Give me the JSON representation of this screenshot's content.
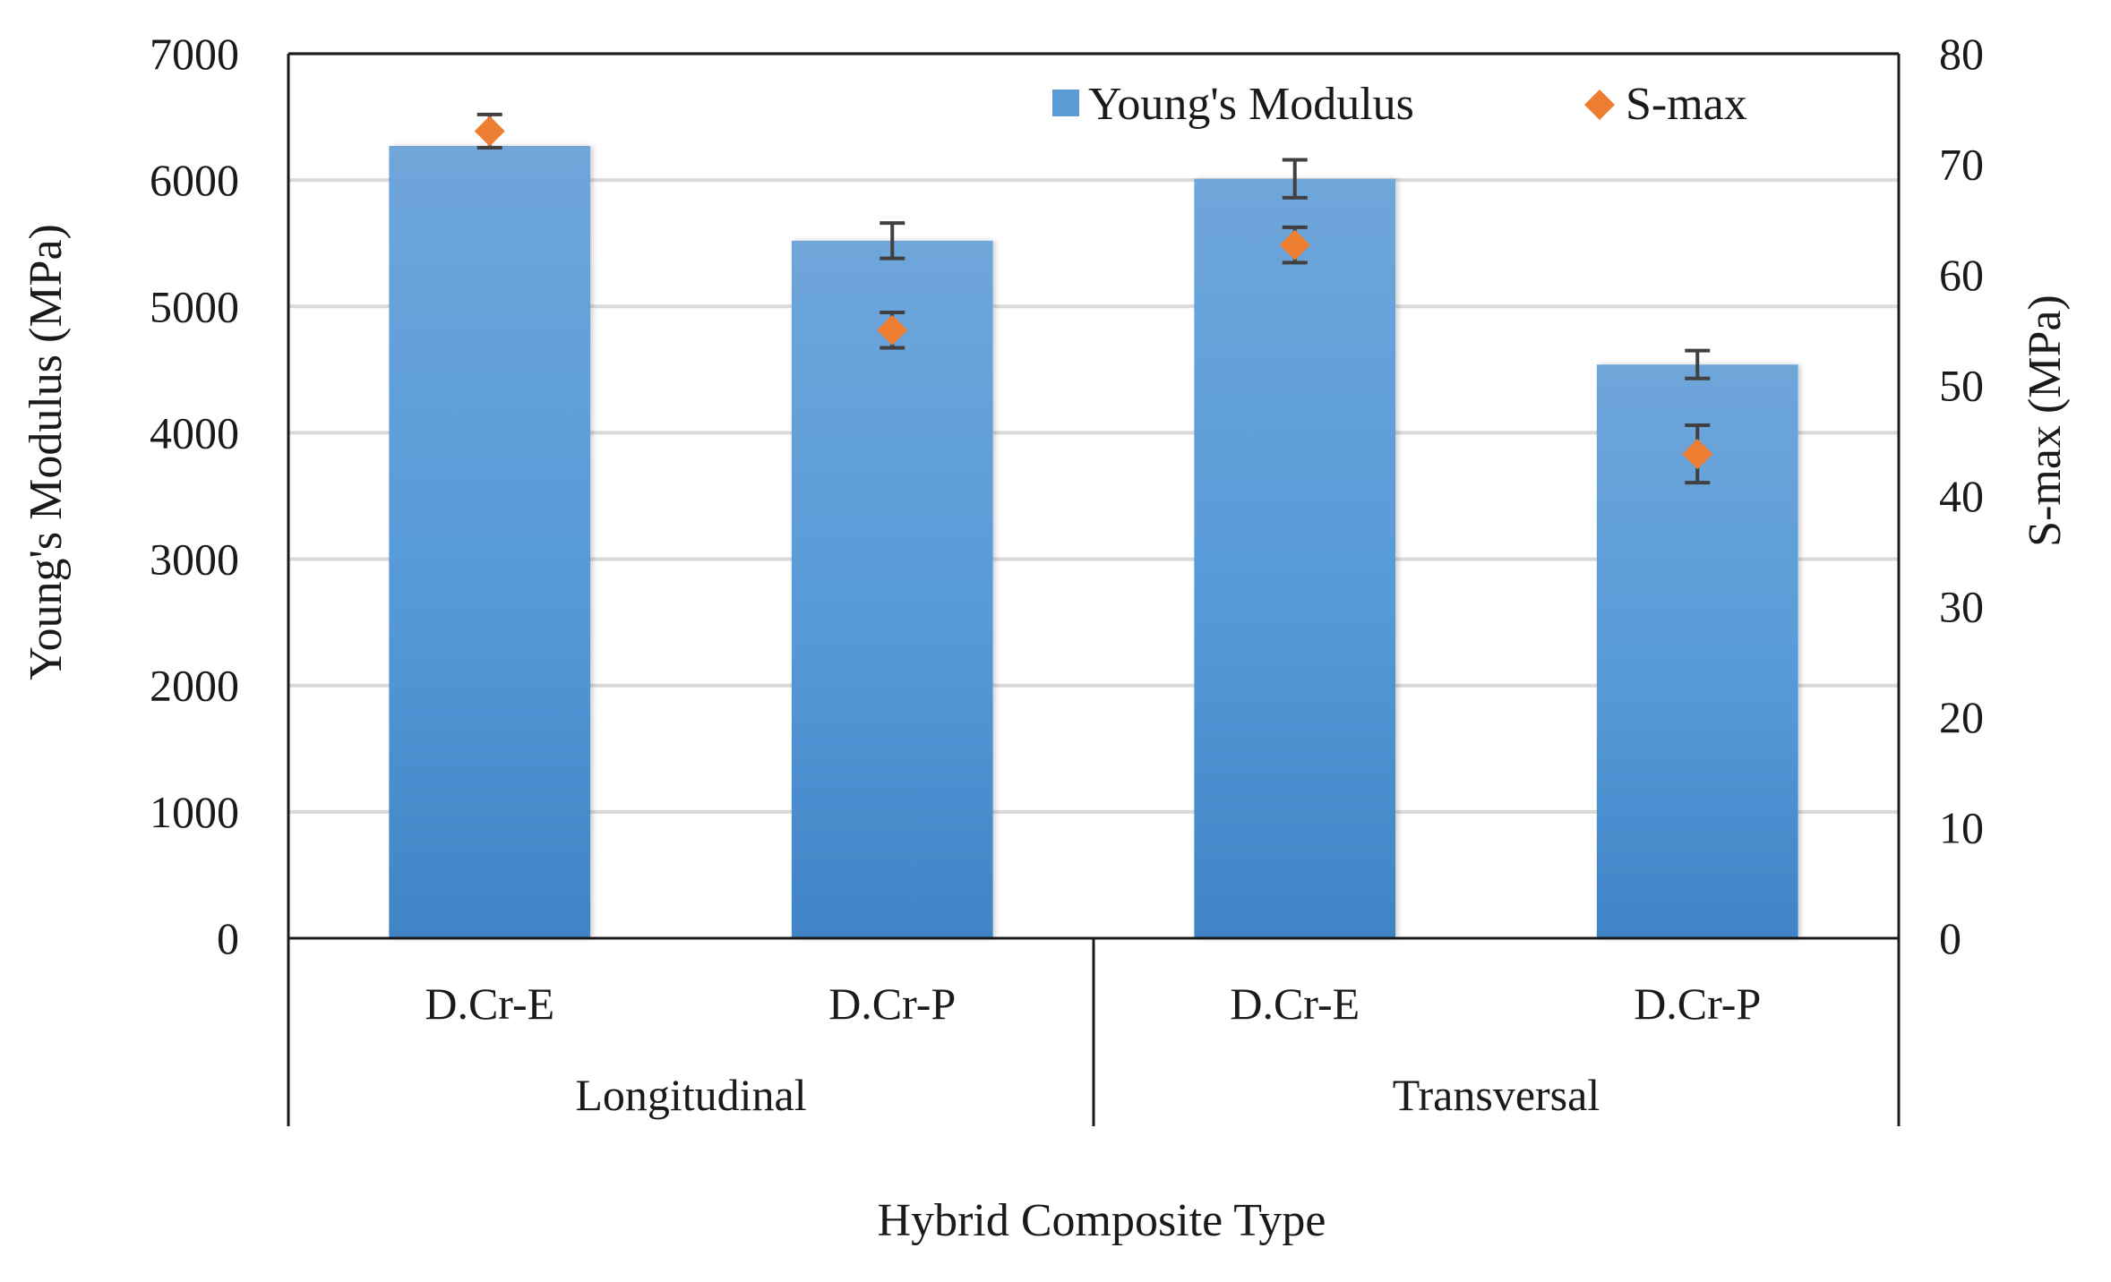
{
  "chart_data": {
    "type": "bar",
    "title": "",
    "xlabel": "Hybrid Composite Type",
    "ylabel": "Young's Modulus (MPa)",
    "y2label": "S-max (MPa)",
    "ylim": [
      0,
      7000
    ],
    "y2lim": [
      0,
      80
    ],
    "yticks": [
      "0",
      "1000",
      "2000",
      "3000",
      "4000",
      "5000",
      "6000",
      "7000"
    ],
    "y2ticks": [
      "0",
      "10",
      "20",
      "30",
      "40",
      "50",
      "60",
      "70",
      "80"
    ],
    "categories": [
      "D.Cr-E",
      "D.Cr-P",
      "D.Cr-E",
      "D.Cr-P"
    ],
    "groups": [
      {
        "label": "Longitudinal",
        "span": 2
      },
      {
        "label": "Transversal",
        "span": 2
      }
    ],
    "series": [
      {
        "name": "Young's Modulus",
        "kind": "bar",
        "axis": "left",
        "values": [
          6270,
          5520,
          6010,
          4540
        ],
        "errors": [
          0,
          140,
          150,
          110
        ],
        "color": "#5b9bd5"
      },
      {
        "name": "S-max",
        "kind": "marker",
        "axis": "right",
        "values": [
          73,
          55,
          62.7,
          43.8
        ],
        "errors": [
          1.5,
          1.6,
          1.6,
          2.6
        ],
        "color": "#ed7d31"
      }
    ],
    "grid": true,
    "legend": "top-right"
  }
}
